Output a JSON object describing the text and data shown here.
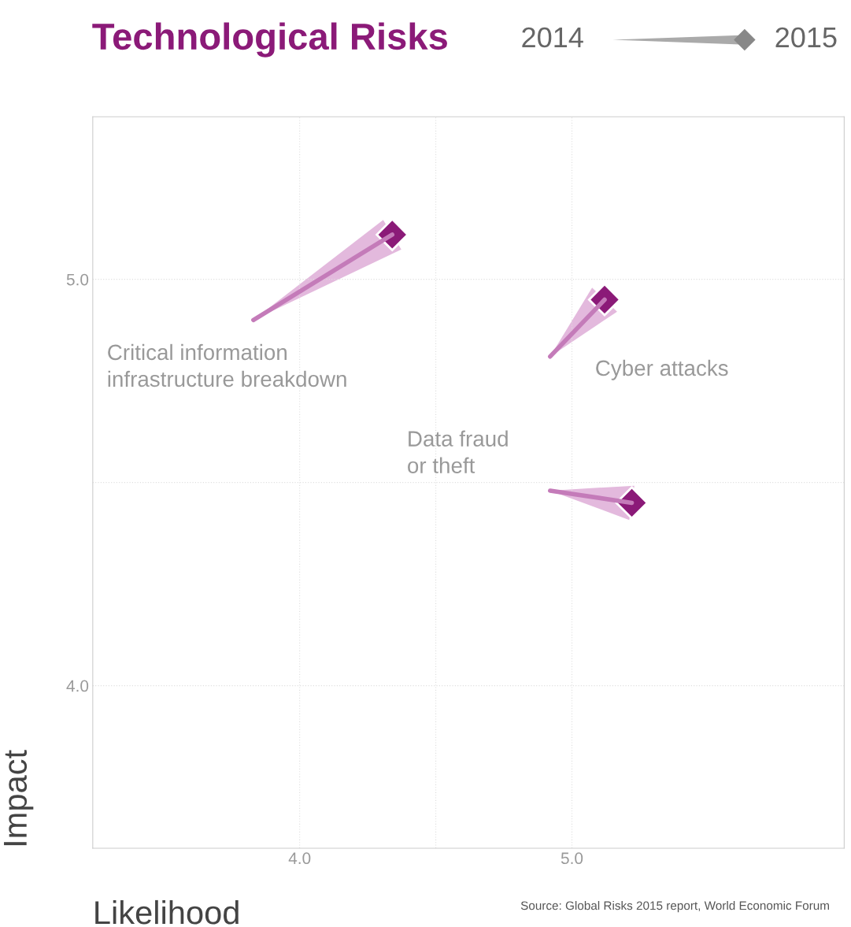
{
  "chart_data": {
    "type": "line",
    "title": "Technological Risks",
    "xlabel": "Likelihood",
    "ylabel": "Impact",
    "xlim": [
      3.24,
      6.0
    ],
    "ylim": [
      3.6,
      5.4
    ],
    "xticks": [
      {
        "value": 4.0,
        "label": "4.0"
      },
      {
        "value": 4.5,
        "label": null
      },
      {
        "value": 5.0,
        "label": "5.0"
      }
    ],
    "yticks": [
      {
        "value": 4.0,
        "label": "4.0"
      },
      {
        "value": 4.5,
        "label": null
      },
      {
        "value": 5.0,
        "label": "5.0"
      }
    ],
    "grid": true,
    "series": [
      {
        "color": "#c47bb9",
        "x": [
          3.83,
          4.34
        ],
        "values": [
          4.9,
          5.11
        ]
      },
      {
        "color": "#c47bb9",
        "x": [
          4.92,
          5.12
        ],
        "values": [
          4.81,
          4.95
        ]
      },
      {
        "color": "#c47bb9",
        "x": [
          4.92,
          5.22
        ],
        "values": [
          4.48,
          4.45
        ]
      },
      {
        "type": "scatter",
        "marker": "diamond",
        "color": "#8b1a78",
        "x": [
          4.34,
          5.12,
          5.22
        ],
        "values": [
          5.11,
          4.95,
          4.45
        ]
      }
    ],
    "annotations": [
      "2014",
      "2015",
      "Critical information\ninfrastructure breakdown",
      "Cyber attacks",
      "Data fraud\nor theft",
      "Source: Global Risks 2015 report, World Economic Forum"
    ]
  }
}
